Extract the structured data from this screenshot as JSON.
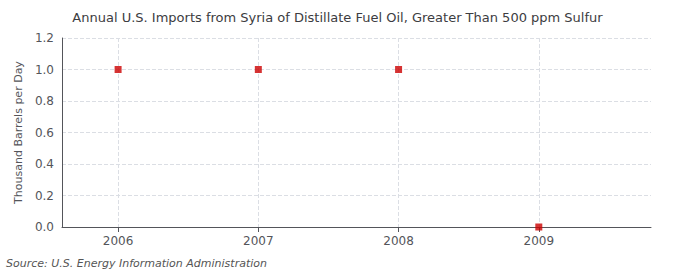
{
  "chart_data": {
    "type": "scatter",
    "title": "Annual U.S. Imports from Syria of Distillate Fuel Oil, Greater Than 500 ppm Sulfur",
    "ylabel": "Thousand Barrels per Day",
    "annotation": "Source: U.S. Energy Information Administration",
    "x": [
      2006,
      2007,
      2008,
      2009
    ],
    "values": [
      1.0,
      1.0,
      1.0,
      0.0
    ],
    "color": "#CC0000",
    "marker": "square",
    "xlim": [
      2005.6,
      2009.8
    ],
    "ylim": [
      0.0,
      1.2
    ],
    "xticks": [
      2006,
      2007,
      2008,
      2009
    ],
    "yticks": [
      {
        "value": 0.0,
        "label": "0.0"
      },
      0.2,
      0.4,
      0.6,
      0.8,
      {
        "value": 1.0,
        "label": "1.0"
      },
      1.2
    ],
    "grid": true
  }
}
